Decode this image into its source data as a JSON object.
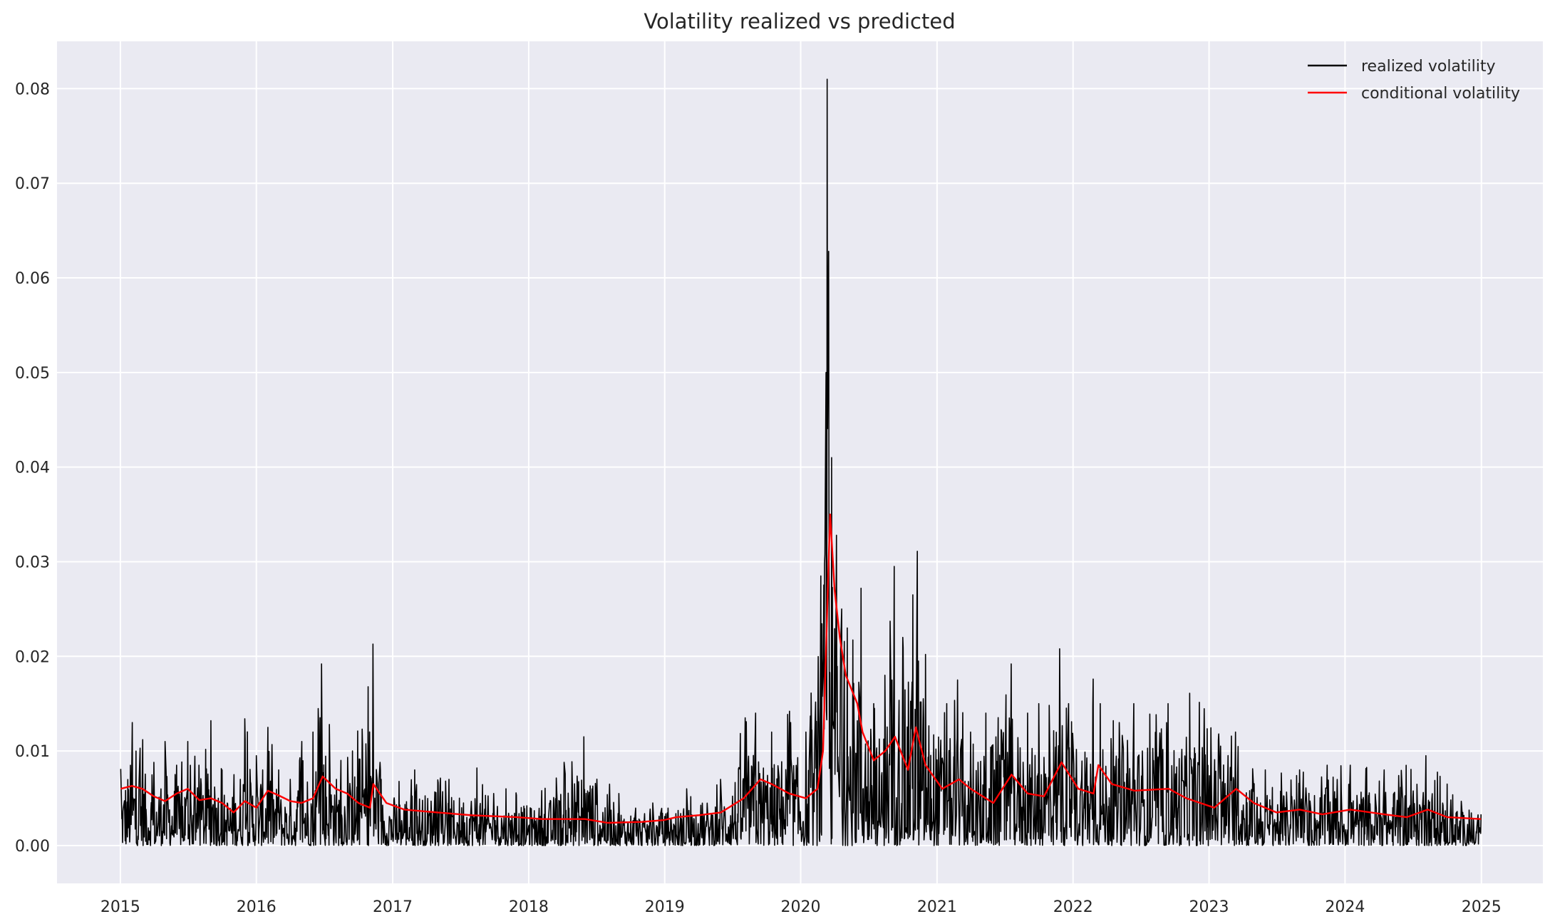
{
  "chart_data": {
    "type": "line",
    "title": "Volatility realized vs predicted",
    "xlabel": "",
    "ylabel": "",
    "x_type": "date",
    "xlim": [
      "2014-07-15",
      "2025-06-15"
    ],
    "ylim": [
      -0.004,
      0.085
    ],
    "x_ticks": [
      "2015",
      "2016",
      "2017",
      "2018",
      "2019",
      "2020",
      "2021",
      "2022",
      "2023",
      "2024",
      "2025"
    ],
    "y_ticks": [
      "0.00",
      "0.01",
      "0.02",
      "0.03",
      "0.04",
      "0.05",
      "0.06",
      "0.07",
      "0.08"
    ],
    "grid": true,
    "legend": "top-right",
    "background": "#eaeaf2",
    "series": [
      {
        "name": "realized volatility",
        "color": "#000000",
        "x_start": "2015-01-02",
        "x_end": "2024-12-31",
        "envelope_peaks": [
          [
            "2015-01-02",
            0.0081
          ],
          [
            "2015-02-01",
            0.013
          ],
          [
            "2015-03-01",
            0.0112
          ],
          [
            "2015-04-01",
            0.0088
          ],
          [
            "2015-05-01",
            0.011
          ],
          [
            "2015-06-01",
            0.0085
          ],
          [
            "2015-07-01",
            0.011
          ],
          [
            "2015-08-01",
            0.0085
          ],
          [
            "2015-09-01",
            0.0132
          ],
          [
            "2015-10-01",
            0.008
          ],
          [
            "2015-11-01",
            0.0075
          ],
          [
            "2015-12-01",
            0.0134
          ],
          [
            "2016-01-01",
            0.0095
          ],
          [
            "2016-02-01",
            0.0125
          ],
          [
            "2016-03-01",
            0.008
          ],
          [
            "2016-04-01",
            0.007
          ],
          [
            "2016-05-01",
            0.011
          ],
          [
            "2016-06-01",
            0.012
          ],
          [
            "2016-06-24",
            0.0192
          ],
          [
            "2016-07-15",
            0.0128
          ],
          [
            "2016-08-15",
            0.009
          ],
          [
            "2016-09-15",
            0.01
          ],
          [
            "2016-11-09",
            0.0213
          ],
          [
            "2016-12-01",
            0.007
          ],
          [
            "2017-03-01",
            0.008
          ],
          [
            "2017-06-01",
            0.007
          ],
          [
            "2017-08-15",
            0.0082
          ],
          [
            "2017-11-01",
            0.006
          ],
          [
            "2018-02-05",
            0.0058
          ],
          [
            "2018-05-29",
            0.0115
          ],
          [
            "2018-09-01",
            0.0055
          ],
          [
            "2018-12-01",
            0.0045
          ],
          [
            "2019-03-01",
            0.006
          ],
          [
            "2019-06-01",
            0.007
          ],
          [
            "2019-08-05",
            0.0135
          ],
          [
            "2019-09-01",
            0.014
          ],
          [
            "2019-10-15",
            0.012
          ],
          [
            "2019-12-01",
            0.0142
          ],
          [
            "2020-01-15",
            0.012
          ],
          [
            "2020-02-24",
            0.0285
          ],
          [
            "2020-03-09",
            0.05
          ],
          [
            "2020-03-12",
            0.081
          ],
          [
            "2020-03-16",
            0.0628
          ],
          [
            "2020-03-24",
            0.041
          ],
          [
            "2020-04-06",
            0.0328
          ],
          [
            "2020-04-20",
            0.025
          ],
          [
            "2020-05-05",
            0.023
          ],
          [
            "2020-06-11",
            0.0272
          ],
          [
            "2020-07-15",
            0.015
          ],
          [
            "2020-08-15",
            0.018
          ],
          [
            "2020-09-08",
            0.0295
          ],
          [
            "2020-10-01",
            0.022
          ],
          [
            "2020-10-28",
            0.0265
          ],
          [
            "2020-11-09",
            0.0311
          ],
          [
            "2020-12-01",
            0.0202
          ],
          [
            "2021-01-27",
            0.015
          ],
          [
            "2021-02-25",
            0.0175
          ],
          [
            "2021-04-01",
            0.012
          ],
          [
            "2021-05-12",
            0.014
          ],
          [
            "2021-07-19",
            0.0192
          ],
          [
            "2021-09-01",
            0.014
          ],
          [
            "2021-10-01",
            0.015
          ],
          [
            "2021-11-26",
            0.0208
          ],
          [
            "2021-12-20",
            0.015
          ],
          [
            "2022-02-24",
            0.0176
          ],
          [
            "2022-03-15",
            0.015
          ],
          [
            "2022-05-05",
            0.013
          ],
          [
            "2022-06-13",
            0.015
          ],
          [
            "2022-09-13",
            0.015
          ],
          [
            "2022-11-10",
            0.0161
          ],
          [
            "2023-03-13",
            0.012
          ],
          [
            "2023-06-01",
            0.008
          ],
          [
            "2023-09-01",
            0.008
          ],
          [
            "2023-11-14",
            0.0085
          ],
          [
            "2024-01-15",
            0.0085
          ],
          [
            "2024-04-15",
            0.008
          ],
          [
            "2024-08-05",
            0.0095
          ],
          [
            "2024-10-01",
            0.0065
          ],
          [
            "2024-12-31",
            0.0033
          ]
        ]
      },
      {
        "name": "conditional volatility",
        "color": "#ff0000",
        "points": [
          [
            "2015-01-02",
            0.006
          ],
          [
            "2015-02-01",
            0.0063
          ],
          [
            "2015-03-01",
            0.006
          ],
          [
            "2015-04-01",
            0.0052
          ],
          [
            "2015-05-01",
            0.0047
          ],
          [
            "2015-06-01",
            0.0055
          ],
          [
            "2015-07-01",
            0.006
          ],
          [
            "2015-08-01",
            0.0048
          ],
          [
            "2015-09-01",
            0.005
          ],
          [
            "2015-10-01",
            0.0045
          ],
          [
            "2015-11-01",
            0.0035
          ],
          [
            "2015-12-01",
            0.0047
          ],
          [
            "2016-01-01",
            0.004
          ],
          [
            "2016-02-01",
            0.0058
          ],
          [
            "2016-03-01",
            0.0053
          ],
          [
            "2016-04-01",
            0.0047
          ],
          [
            "2016-05-01",
            0.0045
          ],
          [
            "2016-06-01",
            0.005
          ],
          [
            "2016-06-27",
            0.0073
          ],
          [
            "2016-08-01",
            0.006
          ],
          [
            "2016-09-01",
            0.0055
          ],
          [
            "2016-10-01",
            0.0045
          ],
          [
            "2016-11-01",
            0.004
          ],
          [
            "2016-11-10",
            0.0065
          ],
          [
            "2016-12-15",
            0.0045
          ],
          [
            "2017-02-01",
            0.0038
          ],
          [
            "2017-05-01",
            0.0035
          ],
          [
            "2017-08-01",
            0.0032
          ],
          [
            "2017-12-01",
            0.003
          ],
          [
            "2018-02-05",
            0.0028
          ],
          [
            "2018-04-01",
            0.0028
          ],
          [
            "2018-06-01",
            0.0028
          ],
          [
            "2018-08-01",
            0.0024
          ],
          [
            "2018-11-01",
            0.0025
          ],
          [
            "2018-12-31",
            0.0027
          ],
          [
            "2019-02-01",
            0.003
          ],
          [
            "2019-04-01",
            0.0032
          ],
          [
            "2019-06-01",
            0.0035
          ],
          [
            "2019-08-01",
            0.005
          ],
          [
            "2019-09-15",
            0.007
          ],
          [
            "2019-10-15",
            0.0065
          ],
          [
            "2019-12-01",
            0.0055
          ],
          [
            "2020-01-15",
            0.005
          ],
          [
            "2020-02-15",
            0.006
          ],
          [
            "2020-03-01",
            0.01
          ],
          [
            "2020-03-10",
            0.022
          ],
          [
            "2020-03-16",
            0.03
          ],
          [
            "2020-03-20",
            0.035
          ],
          [
            "2020-04-01",
            0.027
          ],
          [
            "2020-04-15",
            0.022
          ],
          [
            "2020-05-01",
            0.018
          ],
          [
            "2020-06-01",
            0.015
          ],
          [
            "2020-06-15",
            0.012
          ],
          [
            "2020-07-15",
            0.009
          ],
          [
            "2020-08-15",
            0.01
          ],
          [
            "2020-09-10",
            0.0115
          ],
          [
            "2020-10-15",
            0.008
          ],
          [
            "2020-11-05",
            0.0125
          ],
          [
            "2020-12-01",
            0.0085
          ],
          [
            "2021-01-15",
            0.006
          ],
          [
            "2021-03-01",
            0.007
          ],
          [
            "2021-04-01",
            0.006
          ],
          [
            "2021-06-01",
            0.0045
          ],
          [
            "2021-07-20",
            0.0075
          ],
          [
            "2021-09-01",
            0.0055
          ],
          [
            "2021-10-15",
            0.0052
          ],
          [
            "2021-12-01",
            0.0088
          ],
          [
            "2022-01-15",
            0.006
          ],
          [
            "2022-02-25",
            0.0055
          ],
          [
            "2022-03-10",
            0.0085
          ],
          [
            "2022-04-15",
            0.0065
          ],
          [
            "2022-06-15",
            0.0058
          ],
          [
            "2022-09-15",
            0.006
          ],
          [
            "2022-11-01",
            0.005
          ],
          [
            "2023-01-15",
            0.004
          ],
          [
            "2023-03-15",
            0.006
          ],
          [
            "2023-05-01",
            0.0045
          ],
          [
            "2023-07-01",
            0.0035
          ],
          [
            "2023-09-01",
            0.0038
          ],
          [
            "2023-11-01",
            0.0033
          ],
          [
            "2024-01-15",
            0.0038
          ],
          [
            "2024-04-15",
            0.0033
          ],
          [
            "2024-06-15",
            0.003
          ],
          [
            "2024-08-10",
            0.0038
          ],
          [
            "2024-10-01",
            0.003
          ],
          [
            "2024-12-31",
            0.0028
          ]
        ]
      }
    ]
  }
}
